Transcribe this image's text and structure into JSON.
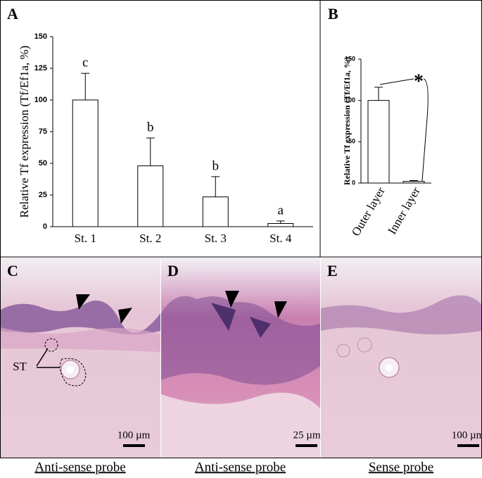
{
  "chart_data": [
    {
      "type": "bar",
      "panel": "A",
      "ylabel": "Relative Tf expression (Tf/Ef1a, %)",
      "categories": [
        "St. 1",
        "St. 2",
        "St. 3",
        "St. 4"
      ],
      "values": [
        100,
        48,
        23.5,
        2.5
      ],
      "errors": [
        21,
        22,
        16,
        2
      ],
      "significance_labels": [
        "c",
        "b",
        "b",
        "a"
      ],
      "color": "#ffffff",
      "ylim": [
        0,
        150
      ],
      "yticks": [
        0,
        25,
        50,
        75,
        100,
        125,
        150
      ]
    },
    {
      "type": "bar",
      "panel": "B",
      "ylabel": "Relative Tf expression (Tf/Ef1a, %)",
      "categories": [
        "Outer layer",
        "Inner layer"
      ],
      "values": [
        100,
        2
      ],
      "errors": [
        16,
        1
      ],
      "annotation": "*",
      "color": "#ffffff",
      "ylim": [
        0,
        150
      ],
      "yticks": [
        0,
        50,
        100,
        150
      ]
    }
  ],
  "panels": [
    {
      "label": "C",
      "scale": "100 µm",
      "caption": "Anti-sense probe",
      "marker": "ST"
    },
    {
      "label": "D",
      "scale": "25 µm",
      "caption": "Anti-sense probe"
    },
    {
      "label": "E",
      "scale": "100 µm",
      "caption": "Sense probe"
    }
  ]
}
